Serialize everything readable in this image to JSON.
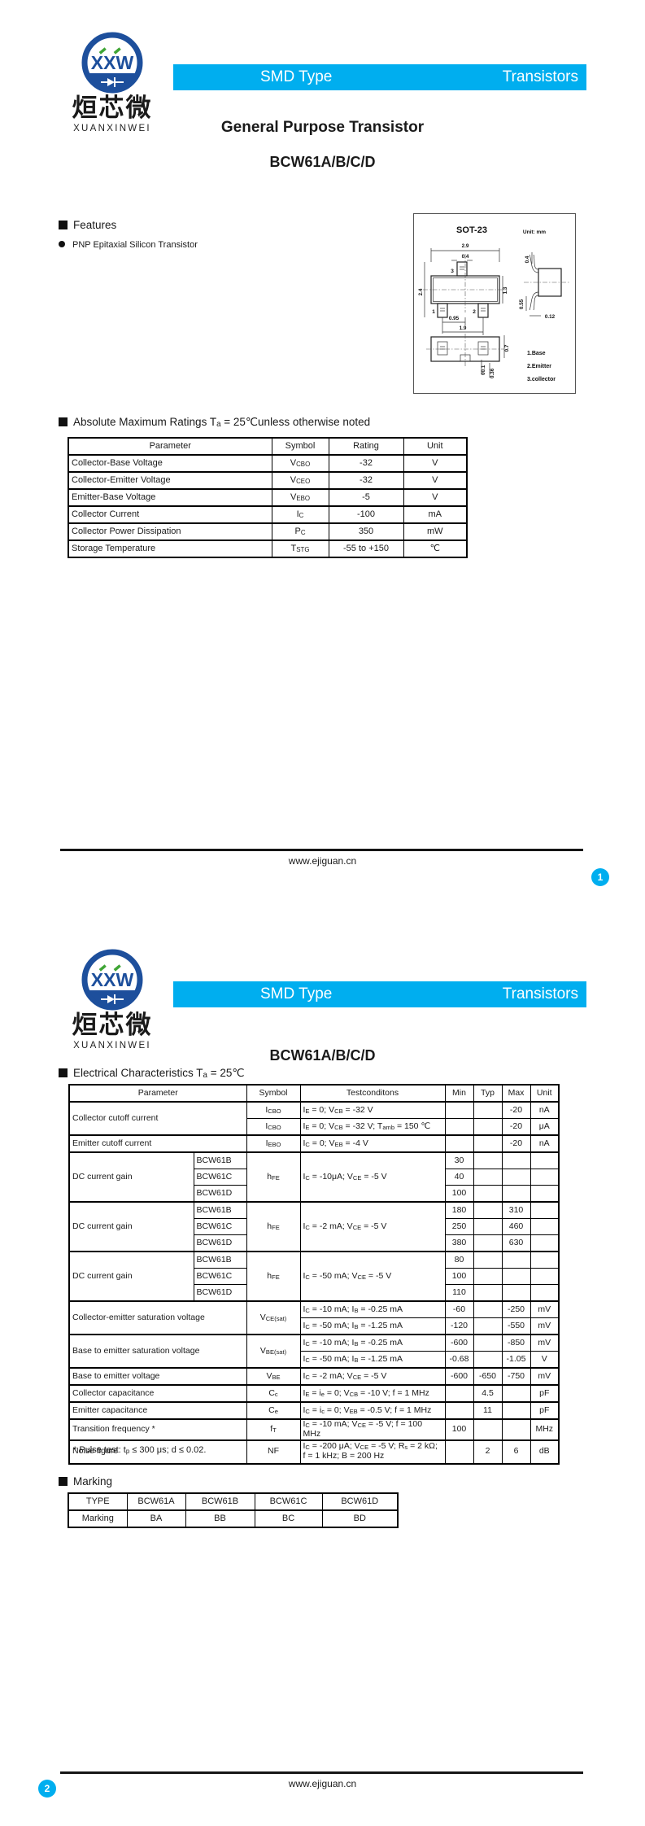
{
  "colors": {
    "accent": "#00AEEF",
    "logo_blue": "#1D4F9C",
    "logo_green": "#3FA535",
    "ink": "#1A1A1A"
  },
  "logo": {
    "monogram": "XXW",
    "cn": "烜芯微",
    "en": "XUANXINWEI"
  },
  "banner": {
    "left": "SMD Type",
    "right": "Transistors"
  },
  "page1": {
    "page_no": "1",
    "title": "General Purpose Transistor",
    "part": "BCW61A/B/C/D",
    "features": {
      "heading": "Features",
      "items": [
        "PNP Epitaxial Silicon Transistor"
      ]
    },
    "package": {
      "name": "SOT-23",
      "unit": "Unit: mm",
      "pin_numbers": [
        "1",
        "2",
        "3"
      ],
      "front": {
        "body_w": "2.9",
        "pin_w": "0.4",
        "total_h": "2.4",
        "body_h": "1.3",
        "pitch": "0.95",
        "span": "1.9"
      },
      "side": {
        "lead_top": "0.4",
        "lead_bot": "0.55",
        "thickness": "0.12"
      },
      "bottom": {
        "height": "0.7",
        "standoff": "0~0.1",
        "pad": "0.36"
      },
      "legend": [
        "1.Base",
        "2.Emitter",
        "3.collector"
      ]
    },
    "abs_max": {
      "heading": "Absolute Maximum Ratings T~a~ = 25℃unless otherwise noted",
      "table": {
        "widths": [
          250,
          70,
          92,
          78
        ],
        "header": [
          "Parameter",
          "Symbol",
          "Rating",
          "Unit"
        ],
        "rows": [
          {
            "cells": [
              {
                "t": "Collector-Base Voltage",
                "al": "l"
              },
              "V~CBO~",
              "-32",
              "V"
            ]
          },
          {
            "cells": [
              {
                "t": "Collector-Emitter Voltage",
                "al": "l"
              },
              "V~CEO~",
              "-32",
              "V"
            ]
          },
          {
            "cells": [
              {
                "t": "Emitter-Base Voltage",
                "al": "l"
              },
              "V~EBO~",
              "-5",
              "V"
            ]
          },
          {
            "cells": [
              {
                "t": "Collector Current",
                "al": "l"
              },
              "I~C~",
              "-100",
              "mA"
            ]
          },
          {
            "cells": [
              {
                "t": "Collector Power Dissipation",
                "al": "l"
              },
              "P~C~",
              "350",
              "mW"
            ]
          },
          {
            "cells": [
              {
                "t": "Storage Temperature",
                "al": "l"
              },
              "T~STG~",
              "-55 to +150",
              "℃"
            ]
          }
        ]
      }
    },
    "footer": {
      "url": "www.ejiguan.cn"
    }
  },
  "page2": {
    "page_no": "2",
    "part": "BCW61A/B/C/D",
    "elec": {
      "heading": "Electrical Characteristics T~a~ = 25℃",
      "footnote": "* Pulse test: t~p~ ≤ 300 μs; d ≤ 0.02.",
      "table": {
        "widths": [
          153,
          65,
          66,
          178,
          35,
          35,
          35,
          35
        ],
        "header": [
          {
            "t": "Parameter",
            "cs": 2
          },
          "Symbol",
          "Testconditons",
          "Min",
          "Typ",
          "Max",
          "Unit"
        ],
        "rows": [
          {
            "gb": 1,
            "cells": [
              {
                "t": "Collector cutoff current",
                "cs": 2,
                "rs": 2,
                "al": "l"
              },
              "I~CBO~",
              {
                "t": "I~E~ = 0; V~CB~ = -32 V",
                "al": "l"
              },
              "",
              "",
              "-20",
              "nA"
            ]
          },
          {
            "cells": [
              "I~CBO~",
              {
                "t": "I~E~ = 0; V~CB~ = -32 V; T~amb~ = 150 ℃",
                "al": "l"
              },
              "",
              "",
              "-20",
              "μA"
            ]
          },
          {
            "gb": 1,
            "cells": [
              {
                "t": "Emitter cutoff current",
                "cs": 2,
                "al": "l"
              },
              "I~EBO~",
              {
                "t": "I~C~ = 0; V~EB~ = -4 V",
                "al": "l"
              },
              "",
              "",
              "-20",
              "nA"
            ]
          },
          {
            "gb": 1,
            "cells": [
              {
                "t": "DC current gain",
                "rs": 3,
                "al": "l"
              },
              {
                "t": "BCW61B",
                "al": "l"
              },
              {
                "t": "h~FE~",
                "rs": 3
              },
              {
                "t": "I~C~ = -10μA; V~CE~ = -5 V",
                "rs": 3,
                "al": "l"
              },
              "30",
              "",
              "",
              ""
            ]
          },
          {
            "cells": [
              {
                "t": "BCW61C",
                "al": "l"
              },
              "40",
              "",
              "",
              ""
            ]
          },
          {
            "cells": [
              {
                "t": "BCW61D",
                "al": "l"
              },
              "100",
              "",
              "",
              ""
            ]
          },
          {
            "gb": 1,
            "cells": [
              {
                "t": "DC current gain",
                "rs": 3,
                "al": "l"
              },
              {
                "t": "BCW61B",
                "al": "l"
              },
              {
                "t": "h~FE~",
                "rs": 3
              },
              {
                "t": "I~C~ = -2 mA; V~CE~ = -5 V",
                "rs": 3,
                "al": "l"
              },
              "180",
              "",
              "310",
              ""
            ]
          },
          {
            "cells": [
              {
                "t": "BCW61C",
                "al": "l"
              },
              "250",
              "",
              "460",
              ""
            ]
          },
          {
            "cells": [
              {
                "t": "BCW61D",
                "al": "l"
              },
              "380",
              "",
              "630",
              ""
            ]
          },
          {
            "gb": 1,
            "cells": [
              {
                "t": "DC current gain",
                "rs": 3,
                "al": "l"
              },
              {
                "t": "BCW61B",
                "al": "l"
              },
              {
                "t": "h~FE~",
                "rs": 3
              },
              {
                "t": "I~C~ = -50 mA; V~CE~ = -5 V",
                "rs": 3,
                "al": "l"
              },
              "80",
              "",
              "",
              ""
            ]
          },
          {
            "cells": [
              {
                "t": "BCW61C",
                "al": "l"
              },
              "100",
              "",
              "",
              ""
            ]
          },
          {
            "cells": [
              {
                "t": "BCW61D",
                "al": "l"
              },
              "110",
              "",
              "",
              ""
            ]
          },
          {
            "gb": 1,
            "cells": [
              {
                "t": "Collector-emitter saturation voltage",
                "cs": 2,
                "rs": 2,
                "al": "l"
              },
              {
                "t": "V~CE(sat)~",
                "rs": 2
              },
              {
                "t": "I~C~ = -10 mA; I~B~ = -0.25 mA",
                "al": "l"
              },
              "-60",
              "",
              "-250",
              "mV"
            ]
          },
          {
            "cells": [
              {
                "t": "I~C~ = -50 mA; I~B~ = -1.25 mA",
                "al": "l"
              },
              "-120",
              "",
              "-550",
              "mV"
            ]
          },
          {
            "gb": 1,
            "cells": [
              {
                "t": "Base to emitter saturation voltage",
                "cs": 2,
                "rs": 2,
                "al": "l"
              },
              {
                "t": "V~BE(sat)~",
                "rs": 2
              },
              {
                "t": "I~C~ = -10 mA; I~B~ = -0.25 mA",
                "al": "l"
              },
              "-600",
              "",
              "-850",
              "mV"
            ]
          },
          {
            "cells": [
              {
                "t": "I~C~ = -50 mA; I~B~ = -1.25 mA",
                "al": "l"
              },
              "-0.68",
              "",
              "-1.05",
              "V"
            ]
          },
          {
            "gb": 1,
            "cells": [
              {
                "t": "Base to emitter voltage",
                "cs": 2,
                "al": "l"
              },
              "V~BE~",
              {
                "t": "I~C~ = -2 mA; V~CE~ = -5 V",
                "al": "l"
              },
              "-600",
              "-650",
              "-750",
              "mV"
            ]
          },
          {
            "gb": 1,
            "cells": [
              {
                "t": "Collector capacitance",
                "cs": 2,
                "al": "l"
              },
              "C~c~",
              {
                "t": "I~E~ = i~e~ = 0; V~CB~ = -10 V; f = 1 MHz",
                "al": "l"
              },
              "",
              "4.5",
              "",
              "pF"
            ]
          },
          {
            "gb": 1,
            "cells": [
              {
                "t": "Emitter capacitance",
                "cs": 2,
                "al": "l"
              },
              "C~e~",
              {
                "t": "I~C~ = i~c~ = 0; V~EB~ = -0.5 V; f = 1 MHz",
                "al": "l"
              },
              "",
              "11",
              "",
              "pF"
            ]
          },
          {
            "gb": 1,
            "cells": [
              {
                "t": "Transition frequency *",
                "cs": 2,
                "al": "l"
              },
              "f~T~",
              {
                "t": "I~C~ = -10 mA; V~CE~ = -5 V; f = 100 MHz",
                "al": "l"
              },
              "100",
              "",
              "",
              "MHz"
            ]
          },
          {
            "gb": 1,
            "h": 29,
            "cells": [
              {
                "t": "Noise figure",
                "cs": 2,
                "al": "l"
              },
              "NF",
              {
                "t": "I~C~ = -200 μA; V~CE~ = -5 V; R~s~ = 2 kΩ;\nf = 1 kHz; B = 200 Hz",
                "al": "l"
              },
              "",
              "2",
              "6",
              "dB"
            ]
          }
        ]
      }
    },
    "marking": {
      "heading": "Marking",
      "table": {
        "widths": [
          72,
          72,
          85,
          83,
          93
        ],
        "rows": [
          {
            "cells": [
              "TYPE",
              "BCW61A",
              "BCW61B",
              "BCW61C",
              "BCW61D"
            ]
          },
          {
            "cells": [
              "Marking",
              "BA",
              "BB",
              "BC",
              "BD"
            ]
          }
        ]
      }
    },
    "footer": {
      "url": "www.ejiguan.cn"
    }
  }
}
